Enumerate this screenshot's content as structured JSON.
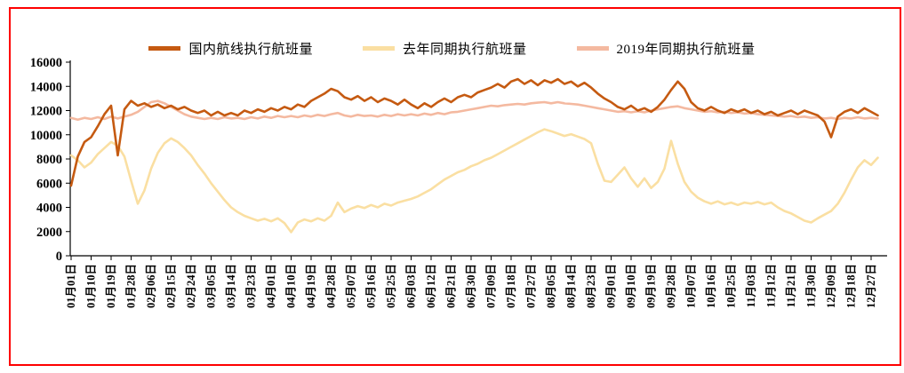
{
  "figure": {
    "border_color": "#FE0000",
    "background": "#FFFFFF",
    "axis_color": "#000000"
  },
  "chart_data": {
    "type": "line",
    "title": "",
    "xlabel": "",
    "ylabel": "",
    "unit": "航班量(班)",
    "ylim": [
      0,
      16000
    ],
    "y_ticks": [
      0,
      2000,
      4000,
      6000,
      8000,
      10000,
      12000,
      14000,
      16000
    ],
    "grid": false,
    "legend_position": "top-center",
    "x_tick_days": [
      1,
      10,
      19,
      28,
      37,
      46,
      55,
      64,
      73,
      82,
      91,
      100,
      109,
      118,
      127,
      136,
      145,
      154,
      163,
      172,
      181,
      190,
      199,
      208,
      217,
      226,
      235,
      244,
      253,
      262,
      271,
      280,
      289,
      298,
      307,
      316,
      325,
      334,
      343,
      352,
      361
    ],
    "x_tick_labels": [
      "01月01日",
      "01月10日",
      "01月19日",
      "01月28日",
      "02月06日",
      "02月15日",
      "02月24日",
      "03月05日",
      "03月14日",
      "03月23日",
      "04月01日",
      "04月10日",
      "04月19日",
      "04月28日",
      "05月07日",
      "05月16日",
      "05月25日",
      "06月03日",
      "06月12日",
      "06月21日",
      "06月30日",
      "07月09日",
      "07月18日",
      "07月27日",
      "08月05日",
      "08月14日",
      "08月23日",
      "09月01日",
      "09月10日",
      "09月19日",
      "09月28日",
      "10月07日",
      "10月16日",
      "10月25日",
      "11月03日",
      "11月12日",
      "11月21日",
      "11月30日",
      "12月09日",
      "12月18日",
      "12月27日"
    ],
    "x_days": [
      1,
      4,
      7,
      10,
      13,
      16,
      19,
      22,
      25,
      28,
      31,
      34,
      37,
      40,
      43,
      46,
      49,
      52,
      55,
      58,
      61,
      64,
      67,
      70,
      73,
      76,
      79,
      82,
      85,
      88,
      91,
      94,
      97,
      100,
      103,
      106,
      109,
      112,
      115,
      118,
      121,
      124,
      127,
      130,
      133,
      136,
      139,
      142,
      145,
      148,
      151,
      154,
      157,
      160,
      163,
      166,
      169,
      172,
      175,
      178,
      181,
      184,
      187,
      190,
      193,
      196,
      199,
      202,
      205,
      208,
      211,
      214,
      217,
      220,
      223,
      226,
      229,
      232,
      235,
      238,
      241,
      244,
      247,
      250,
      253,
      256,
      259,
      262,
      265,
      268,
      271,
      274,
      277,
      280,
      283,
      286,
      289,
      292,
      295,
      298,
      301,
      304,
      307,
      310,
      313,
      316,
      319,
      322,
      325,
      328,
      331,
      334,
      337,
      340,
      343,
      346,
      349,
      352,
      355,
      358,
      361,
      364
    ],
    "series": [
      {
        "id": "domestic-current",
        "name": "国内航线执行航班量",
        "color": "#C55A11",
        "stroke_width": 2.6,
        "values": [
          5800,
          8200,
          9400,
          9800,
          10700,
          11700,
          12400,
          8300,
          12100,
          12800,
          12400,
          12600,
          12300,
          12500,
          12200,
          12400,
          12100,
          12300,
          12000,
          11800,
          12000,
          11600,
          11900,
          11600,
          11800,
          11600,
          12000,
          11800,
          12100,
          11900,
          12200,
          12000,
          12300,
          12100,
          12500,
          12300,
          12800,
          13100,
          13400,
          13800,
          13600,
          13100,
          12900,
          13200,
          12800,
          13100,
          12700,
          13000,
          12800,
          12500,
          12900,
          12500,
          12200,
          12600,
          12300,
          12700,
          13000,
          12700,
          13100,
          13300,
          13100,
          13500,
          13700,
          13900,
          14200,
          13900,
          14400,
          14600,
          14200,
          14500,
          14100,
          14500,
          14300,
          14600,
          14200,
          14400,
          14000,
          14300,
          13900,
          13400,
          13000,
          12700,
          12300,
          12100,
          12400,
          12000,
          12200,
          11900,
          12300,
          12900,
          13700,
          14400,
          13800,
          12700,
          12200,
          12000,
          12300,
          12000,
          11800,
          12100,
          11900,
          12100,
          11800,
          12000,
          11700,
          11900,
          11600,
          11800,
          12000,
          11700,
          12000,
          11800,
          11600,
          11100,
          9800,
          11500,
          11900,
          12100,
          11800,
          12200,
          11900,
          11600
        ]
      },
      {
        "id": "last-year-same-period",
        "name": "去年同期执行航班量",
        "color": "#FADFA2",
        "stroke_width": 2.6,
        "values": [
          8300,
          7900,
          7300,
          7700,
          8400,
          8900,
          9400,
          9100,
          8200,
          6200,
          4300,
          5400,
          7200,
          8500,
          9300,
          9700,
          9400,
          8900,
          8300,
          7500,
          6800,
          6000,
          5300,
          4600,
          4000,
          3600,
          3300,
          3100,
          2900,
          3050,
          2850,
          3100,
          2700,
          1950,
          2750,
          3000,
          2850,
          3100,
          2900,
          3300,
          4400,
          3600,
          3900,
          4100,
          3950,
          4200,
          4000,
          4300,
          4150,
          4400,
          4550,
          4700,
          4900,
          5200,
          5500,
          5900,
          6300,
          6600,
          6900,
          7100,
          7400,
          7600,
          7900,
          8100,
          8400,
          8700,
          9000,
          9300,
          9600,
          9900,
          10200,
          10450,
          10300,
          10100,
          9900,
          10050,
          9850,
          9650,
          9300,
          7600,
          6200,
          6100,
          6700,
          7300,
          6400,
          5700,
          6400,
          5600,
          6100,
          7200,
          9500,
          7600,
          6100,
          5300,
          4800,
          4500,
          4300,
          4500,
          4250,
          4400,
          4200,
          4400,
          4300,
          4450,
          4250,
          4400,
          4000,
          3700,
          3500,
          3200,
          2900,
          2750,
          3100,
          3400,
          3700,
          4300,
          5200,
          6300,
          7300,
          7900,
          7500,
          8100
        ]
      },
      {
        "id": "year-2019-same-period",
        "name": "2019年同期执行航班量",
        "color": "#F4B9A0",
        "stroke_width": 2.6,
        "values": [
          11400,
          11250,
          11400,
          11300,
          11450,
          11300,
          11500,
          11350,
          11500,
          11650,
          11900,
          12300,
          12700,
          12800,
          12600,
          12300,
          12000,
          11700,
          11500,
          11400,
          11300,
          11400,
          11300,
          11450,
          11350,
          11400,
          11300,
          11450,
          11350,
          11500,
          11400,
          11550,
          11450,
          11550,
          11450,
          11600,
          11500,
          11650,
          11550,
          11700,
          11800,
          11600,
          11500,
          11650,
          11550,
          11600,
          11500,
          11650,
          11550,
          11700,
          11600,
          11700,
          11600,
          11750,
          11650,
          11800,
          11700,
          11850,
          11900,
          12000,
          12100,
          12200,
          12300,
          12400,
          12350,
          12450,
          12500,
          12550,
          12500,
          12600,
          12650,
          12700,
          12600,
          12700,
          12600,
          12550,
          12500,
          12400,
          12300,
          12200,
          12100,
          12000,
          11900,
          11950,
          11850,
          11950,
          11850,
          12000,
          12100,
          12200,
          12300,
          12350,
          12200,
          12100,
          12000,
          11900,
          11950,
          11850,
          11900,
          11800,
          11850,
          11750,
          11800,
          11700,
          11650,
          11600,
          11550,
          11500,
          11550,
          11450,
          11500,
          11400,
          11450,
          11350,
          11400,
          11300,
          11400,
          11350,
          11450,
          11350,
          11400,
          11350
        ]
      }
    ]
  }
}
